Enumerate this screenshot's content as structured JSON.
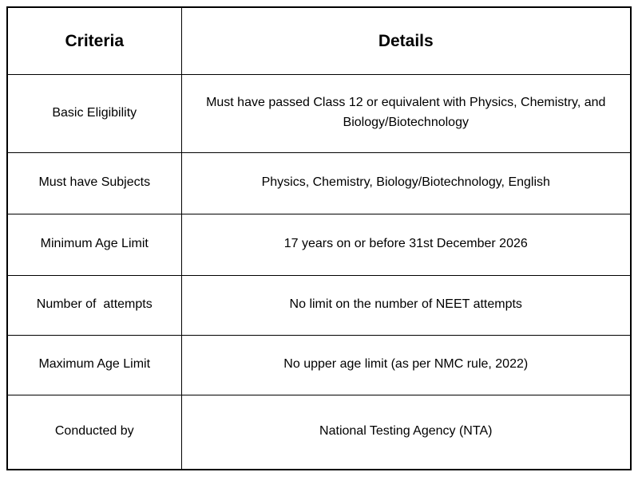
{
  "table": {
    "headers": {
      "criteria": "Criteria",
      "details": "Details"
    },
    "rows": [
      {
        "criteria": "Basic Eligibility",
        "details": "Must have passed Class 12 or equivalent with Physics, Chemistry, and Biology/Biotechnology"
      },
      {
        "criteria": "Must have Subjects",
        "details": "Physics, Chemistry, Biology/Biotechnology, English"
      },
      {
        "criteria": "Minimum Age Limit",
        "details": "17 years on or before 31st December 2026"
      },
      {
        "criteria": "Number of  attempts",
        "details": "No limit on the number of NEET attempts"
      },
      {
        "criteria": "Maximum Age Limit",
        "details": "No upper age limit (as per NMC rule, 2022)"
      },
      {
        "criteria": "Conducted by",
        "details": "National Testing Agency (NTA)"
      }
    ],
    "colors": {
      "border": "#000000",
      "text": "#000000",
      "background": "#ffffff"
    }
  }
}
